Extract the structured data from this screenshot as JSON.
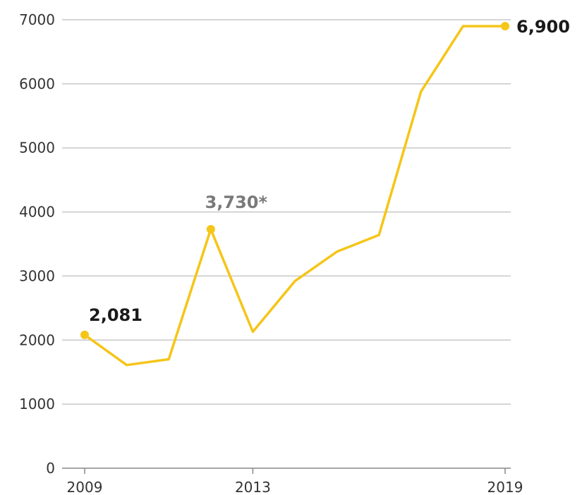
{
  "chart_data": {
    "type": "line",
    "x": [
      2009,
      2010,
      2011,
      2012,
      2013,
      2014,
      2015,
      2016,
      2017,
      2018,
      2019
    ],
    "series": [
      {
        "values": [
          2081,
          1610,
          1700,
          3730,
          2130,
          2920,
          3380,
          3640,
          5880,
          6900,
          6900
        ]
      }
    ],
    "ylim": [
      0,
      7000
    ],
    "yticks": [
      "0",
      "1000",
      "2000",
      "3000",
      "4000",
      "5000",
      "6000",
      "7000"
    ],
    "xticks": [
      "2009",
      "2013",
      "2019"
    ],
    "annotations": [
      {
        "text": "2,081",
        "point_index": 0,
        "color": "#1a1a1a"
      },
      {
        "text": "3,730*",
        "point_index": 3,
        "color": "#7a7a7a"
      },
      {
        "text": "6,900",
        "point_index": 10,
        "color": "#1a1a1a"
      }
    ],
    "line_color": "#f5c518",
    "grid": true
  }
}
